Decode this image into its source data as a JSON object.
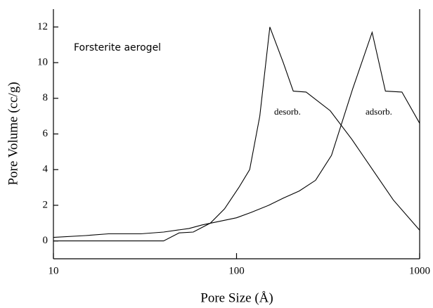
{
  "chart_data": {
    "type": "line",
    "xlabel": "Pore Size (Å)",
    "ylabel": "Pore Volume (cc/g)",
    "annotations": [
      "Forsterite aerogel",
      "desorb.",
      "adsorb."
    ],
    "xlog": true,
    "xlim": [
      10,
      1000
    ],
    "xticks": [
      10,
      100,
      1000
    ],
    "ylim": [
      -1,
      13
    ],
    "yticks": [
      0,
      2,
      4,
      6,
      8,
      10,
      12
    ],
    "series": [
      {
        "name": "desorb.",
        "color": "#000000",
        "x": [
          10,
          20,
          30,
          40,
          48.6,
          58,
          72,
          86,
          103,
          118,
          134,
          152,
          180,
          204,
          240,
          325,
          426,
          553,
          718,
          1000
        ],
        "values": [
          0,
          0,
          0,
          0,
          0.45,
          0.5,
          1.0,
          1.8,
          3.0,
          4.0,
          7.0,
          12.0,
          10.0,
          8.4,
          8.35,
          7.3,
          5.7,
          4.0,
          2.3,
          0.6
        ]
      },
      {
        "name": "adsorb.",
        "color": "#000000",
        "x": [
          10,
          15,
          20,
          30,
          40,
          55,
          65,
          90,
          100,
          120,
          150,
          180,
          220,
          270,
          330,
          430,
          550,
          650,
          800,
          1000
        ],
        "values": [
          0.2,
          0.3,
          0.4,
          0.4,
          0.5,
          0.7,
          0.9,
          1.2,
          1.3,
          1.6,
          2.0,
          2.4,
          2.8,
          3.4,
          4.8,
          8.5,
          11.7,
          8.4,
          8.35,
          6.6
        ]
      }
    ]
  }
}
